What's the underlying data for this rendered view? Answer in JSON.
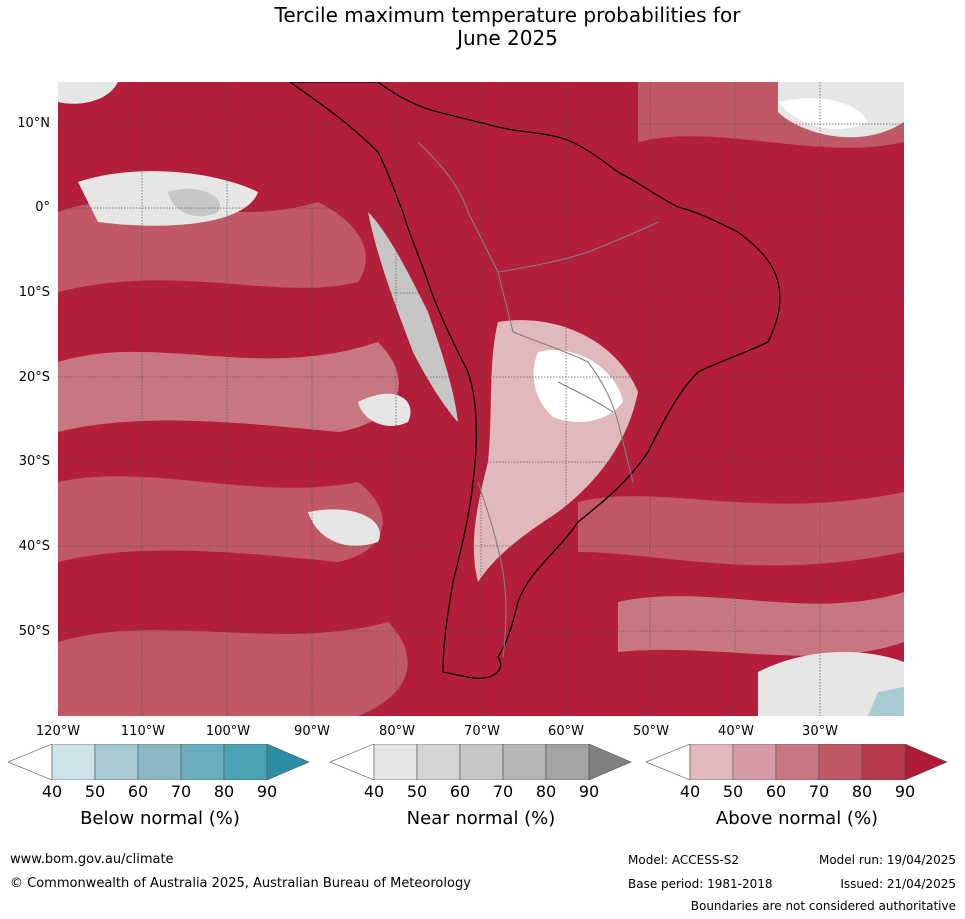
{
  "title_line1": "Tercile maximum temperature probabilities for",
  "title_line2": "June 2025",
  "latitude_labels": [
    "10°N",
    "0°",
    "10°S",
    "20°S",
    "30°S",
    "40°S",
    "50°S"
  ],
  "longitude_labels": [
    "120°W",
    "110°W",
    "100°W",
    "90°W",
    "80°W",
    "70°W",
    "60°W",
    "50°W",
    "40°W",
    "30°W"
  ],
  "legends": [
    {
      "title": "Below normal (%)",
      "ticks": [
        "40",
        "50",
        "60",
        "70",
        "80",
        "90"
      ],
      "colors": [
        "#ffffff",
        "#cde3ea",
        "#a8cad2",
        "#8ab8c5",
        "#6aadbd",
        "#4aa2b4",
        "#2c8ea3"
      ]
    },
    {
      "title": "Near normal (%)",
      "ticks": [
        "40",
        "50",
        "60",
        "70",
        "80",
        "90"
      ],
      "colors": [
        "#ffffff",
        "#e6e6e6",
        "#d5d5d5",
        "#c6c6c6",
        "#b5b5b5",
        "#a3a3a3",
        "#808080"
      ]
    },
    {
      "title": "Above normal (%)",
      "ticks": [
        "40",
        "50",
        "60",
        "70",
        "80",
        "90"
      ],
      "colors": [
        "#ffffff",
        "#e0b8be",
        "#d59aa3",
        "#c87780",
        "#c05866",
        "#b8394c",
        "#b01c38"
      ]
    }
  ],
  "footer": {
    "url": "www.bom.gov.au/climate",
    "copyright": "© Commonwealth of Australia 2025, Australian Bureau of Meteorology",
    "model": "Model: ACCESS-S2",
    "model_run": "Model run: 19/04/2025",
    "base_period": "Base period: 1981-2018",
    "issued": "Issued: 21/04/2025",
    "disclaimer": "Boundaries are not considered authoritative"
  }
}
